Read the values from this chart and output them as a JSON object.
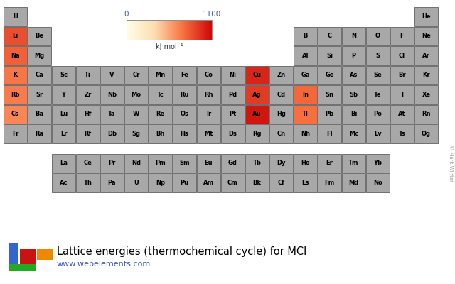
{
  "title": "Lattice energies (thermochemical cycle) for MCl",
  "url": "www.webelements.com",
  "colorbar_label": "kJ mol⁻¹",
  "colorbar_min": 0,
  "colorbar_max": 1100,
  "bg_color": "#ffffff",
  "default_color": "#a8a8a8",
  "elements": {
    "H": {
      "row": 0,
      "col": 0,
      "val": null
    },
    "He": {
      "row": 0,
      "col": 17,
      "val": null
    },
    "Li": {
      "row": 1,
      "col": 0,
      "val": 853
    },
    "Be": {
      "row": 1,
      "col": 1,
      "val": null
    },
    "B": {
      "row": 1,
      "col": 12,
      "val": null
    },
    "C": {
      "row": 1,
      "col": 13,
      "val": null
    },
    "N": {
      "row": 1,
      "col": 14,
      "val": null
    },
    "O": {
      "row": 1,
      "col": 15,
      "val": null
    },
    "F": {
      "row": 1,
      "col": 16,
      "val": null
    },
    "Ne": {
      "row": 1,
      "col": 17,
      "val": null
    },
    "Na": {
      "row": 2,
      "col": 0,
      "val": 787
    },
    "Mg": {
      "row": 2,
      "col": 1,
      "val": null
    },
    "Al": {
      "row": 2,
      "col": 12,
      "val": null
    },
    "Si": {
      "row": 2,
      "col": 13,
      "val": null
    },
    "P": {
      "row": 2,
      "col": 14,
      "val": null
    },
    "S": {
      "row": 2,
      "col": 15,
      "val": null
    },
    "Cl": {
      "row": 2,
      "col": 16,
      "val": null
    },
    "Ar": {
      "row": 2,
      "col": 17,
      "val": null
    },
    "K": {
      "row": 3,
      "col": 0,
      "val": 717
    },
    "Ca": {
      "row": 3,
      "col": 1,
      "val": null
    },
    "Sc": {
      "row": 3,
      "col": 2,
      "val": null
    },
    "Ti": {
      "row": 3,
      "col": 3,
      "val": null
    },
    "V": {
      "row": 3,
      "col": 4,
      "val": null
    },
    "Cr": {
      "row": 3,
      "col": 5,
      "val": null
    },
    "Mn": {
      "row": 3,
      "col": 6,
      "val": null
    },
    "Fe": {
      "row": 3,
      "col": 7,
      "val": null
    },
    "Co": {
      "row": 3,
      "col": 8,
      "val": null
    },
    "Ni": {
      "row": 3,
      "col": 9,
      "val": null
    },
    "Cu": {
      "row": 3,
      "col": 10,
      "val": 996
    },
    "Zn": {
      "row": 3,
      "col": 11,
      "val": null
    },
    "Ga": {
      "row": 3,
      "col": 12,
      "val": null
    },
    "Ge": {
      "row": 3,
      "col": 13,
      "val": null
    },
    "As": {
      "row": 3,
      "col": 14,
      "val": null
    },
    "Se": {
      "row": 3,
      "col": 15,
      "val": null
    },
    "Br": {
      "row": 3,
      "col": 16,
      "val": null
    },
    "Kr": {
      "row": 3,
      "col": 17,
      "val": null
    },
    "Rb": {
      "row": 4,
      "col": 0,
      "val": 695
    },
    "Sr": {
      "row": 4,
      "col": 1,
      "val": null
    },
    "Y": {
      "row": 4,
      "col": 2,
      "val": null
    },
    "Zr": {
      "row": 4,
      "col": 3,
      "val": null
    },
    "Nb": {
      "row": 4,
      "col": 4,
      "val": null
    },
    "Mo": {
      "row": 4,
      "col": 5,
      "val": null
    },
    "Tc": {
      "row": 4,
      "col": 6,
      "val": null
    },
    "Ru": {
      "row": 4,
      "col": 7,
      "val": null
    },
    "Rh": {
      "row": 4,
      "col": 8,
      "val": null
    },
    "Pd": {
      "row": 4,
      "col": 9,
      "val": null
    },
    "Ag": {
      "row": 4,
      "col": 10,
      "val": 918
    },
    "Cd": {
      "row": 4,
      "col": 11,
      "val": null
    },
    "In": {
      "row": 4,
      "col": 12,
      "val": 764
    },
    "Sn": {
      "row": 4,
      "col": 13,
      "val": null
    },
    "Sb": {
      "row": 4,
      "col": 14,
      "val": null
    },
    "Te": {
      "row": 4,
      "col": 15,
      "val": null
    },
    "I": {
      "row": 4,
      "col": 16,
      "val": null
    },
    "Xe": {
      "row": 4,
      "col": 17,
      "val": null
    },
    "Cs": {
      "row": 5,
      "col": 0,
      "val": 659
    },
    "Ba": {
      "row": 5,
      "col": 1,
      "val": null
    },
    "Lu": {
      "row": 5,
      "col": 2,
      "val": null
    },
    "Hf": {
      "row": 5,
      "col": 3,
      "val": null
    },
    "Ta": {
      "row": 5,
      "col": 4,
      "val": null
    },
    "W": {
      "row": 5,
      "col": 5,
      "val": null
    },
    "Re": {
      "row": 5,
      "col": 6,
      "val": null
    },
    "Os": {
      "row": 5,
      "col": 7,
      "val": null
    },
    "Ir": {
      "row": 5,
      "col": 8,
      "val": null
    },
    "Pt": {
      "row": 5,
      "col": 9,
      "val": null
    },
    "Au": {
      "row": 5,
      "col": 10,
      "val": 1050
    },
    "Hg": {
      "row": 5,
      "col": 11,
      "val": null
    },
    "Tl": {
      "row": 5,
      "col": 12,
      "val": 738
    },
    "Pb": {
      "row": 5,
      "col": 13,
      "val": null
    },
    "Bi": {
      "row": 5,
      "col": 14,
      "val": null
    },
    "Po": {
      "row": 5,
      "col": 15,
      "val": null
    },
    "At": {
      "row": 5,
      "col": 16,
      "val": null
    },
    "Rn": {
      "row": 5,
      "col": 17,
      "val": null
    },
    "Fr": {
      "row": 6,
      "col": 0,
      "val": null
    },
    "Ra": {
      "row": 6,
      "col": 1,
      "val": null
    },
    "Lr": {
      "row": 6,
      "col": 2,
      "val": null
    },
    "Rf": {
      "row": 6,
      "col": 3,
      "val": null
    },
    "Db": {
      "row": 6,
      "col": 4,
      "val": null
    },
    "Sg": {
      "row": 6,
      "col": 5,
      "val": null
    },
    "Bh": {
      "row": 6,
      "col": 6,
      "val": null
    },
    "Hs": {
      "row": 6,
      "col": 7,
      "val": null
    },
    "Mt": {
      "row": 6,
      "col": 8,
      "val": null
    },
    "Ds": {
      "row": 6,
      "col": 9,
      "val": null
    },
    "Rg": {
      "row": 6,
      "col": 10,
      "val": null
    },
    "Cn": {
      "row": 6,
      "col": 11,
      "val": null
    },
    "Nh": {
      "row": 6,
      "col": 12,
      "val": null
    },
    "Fl": {
      "row": 6,
      "col": 13,
      "val": null
    },
    "Mc": {
      "row": 6,
      "col": 14,
      "val": null
    },
    "Lv": {
      "row": 6,
      "col": 15,
      "val": null
    },
    "Ts": {
      "row": 6,
      "col": 16,
      "val": null
    },
    "Og": {
      "row": 6,
      "col": 17,
      "val": null
    }
  },
  "lanthanides": [
    "La",
    "Ce",
    "Pr",
    "Nd",
    "Pm",
    "Sm",
    "Eu",
    "Gd",
    "Tb",
    "Dy",
    "Ho",
    "Er",
    "Tm",
    "Yb"
  ],
  "actinides": [
    "Ac",
    "Th",
    "Pa",
    "U",
    "Np",
    "Pu",
    "Am",
    "Cm",
    "Bk",
    "Cf",
    "Es",
    "Fm",
    "Md",
    "No"
  ]
}
